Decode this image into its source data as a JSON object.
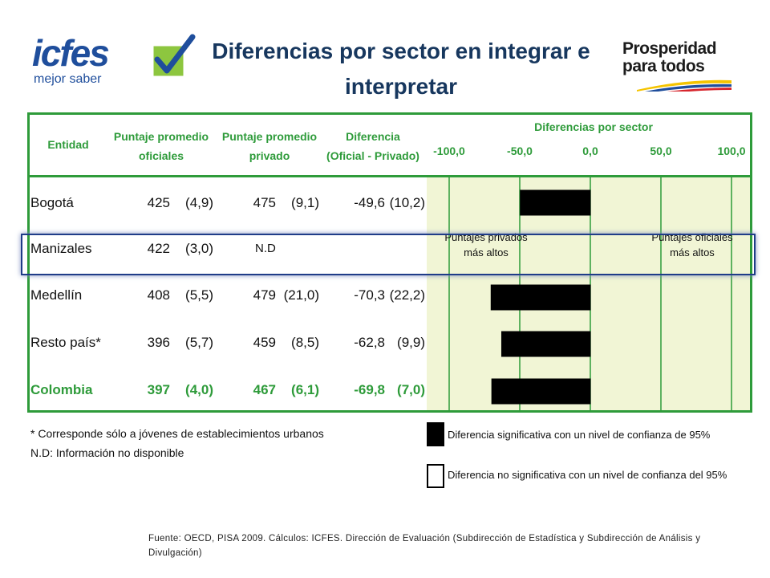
{
  "title": "Diferencias por sector en integrar e interpretar",
  "logos": {
    "icfes_brand": "icfes",
    "icfes_tagline": "mejor saber",
    "prosperidad_line1": "Prosperidad",
    "prosperidad_line2": "para todos"
  },
  "columns": {
    "entidad": "Entidad",
    "oficiales": [
      "Puntaje promedio",
      "oficiales"
    ],
    "privado": [
      "Puntaje promedio",
      "privado"
    ],
    "diferencia": [
      "Diferencia",
      "(Oficial - Privado)"
    ],
    "chart": "Diferencias por sector"
  },
  "chart_data": {
    "type": "bar",
    "orientation": "horizontal",
    "title": "Diferencias por sector",
    "xlim": [
      -100,
      100
    ],
    "ticks": [
      "-100,0",
      "-50,0",
      "0,0",
      "50,0",
      "100,0"
    ],
    "tick_values": [
      -100,
      -50,
      0,
      50,
      100
    ],
    "categories": [
      "Bogotá",
      "Manizales",
      "Medellín",
      "Resto país*",
      "Colombia"
    ],
    "values": [
      -49.6,
      null,
      -70.3,
      -62.8,
      -69.8
    ],
    "significant": [
      true,
      null,
      true,
      true,
      true
    ],
    "annotations": {
      "left": "Puntajes privados más altos",
      "right": "Puntajes oficiales más altos"
    }
  },
  "rows": [
    {
      "entidad": "Bogotá",
      "of": "425",
      "of_se": "(4,9)",
      "pr": "475",
      "pr_se": "(9,1)",
      "dif": "-49,6",
      "dif_se": "(10,2)",
      "bold": false
    },
    {
      "entidad": "Manizales",
      "of": "422",
      "of_se": "(3,0)",
      "pr": "N.D",
      "pr_se": "",
      "dif": "",
      "dif_se": "",
      "bold": false
    },
    {
      "entidad": "Medellín",
      "of": "408",
      "of_se": "(5,5)",
      "pr": "479",
      "pr_se": "(21,0)",
      "dif": "-70,3",
      "dif_se": "(22,2)",
      "bold": false
    },
    {
      "entidad": "Resto país*",
      "of": "396",
      "of_se": "(5,7)",
      "pr": "459",
      "pr_se": "(8,5)",
      "dif": "-62,8",
      "dif_se": "(9,9)",
      "bold": false
    },
    {
      "entidad": "Colombia",
      "of": "397",
      "of_se": "(4,0)",
      "pr": "467",
      "pr_se": "(6,1)",
      "dif": "-69,8",
      "dif_se": "(7,0)",
      "bold": true
    }
  ],
  "notes": {
    "asterisk": "* Corresponde sólo a jóvenes de establecimientos urbanos",
    "nd": "N.D: Información no disponible"
  },
  "legend": {
    "significant": "Diferencia significativa  con un nivel de confianza de 95%",
    "not_significant": "Diferencia no significativa con un nivel de confianza del 95%"
  },
  "source": "Fuente: OECD, PISA 2009. Cálculos: ICFES. Dirección de Evaluación (Subdirección de Estadística y Subdirección de Análisis y Divulgación)",
  "colors": {
    "accent_green": "#2e9b3a",
    "title_blue": "#17375e",
    "chart_bg": "#f1f5d5",
    "bar": "#000000",
    "highlight": "#1f3c88"
  }
}
